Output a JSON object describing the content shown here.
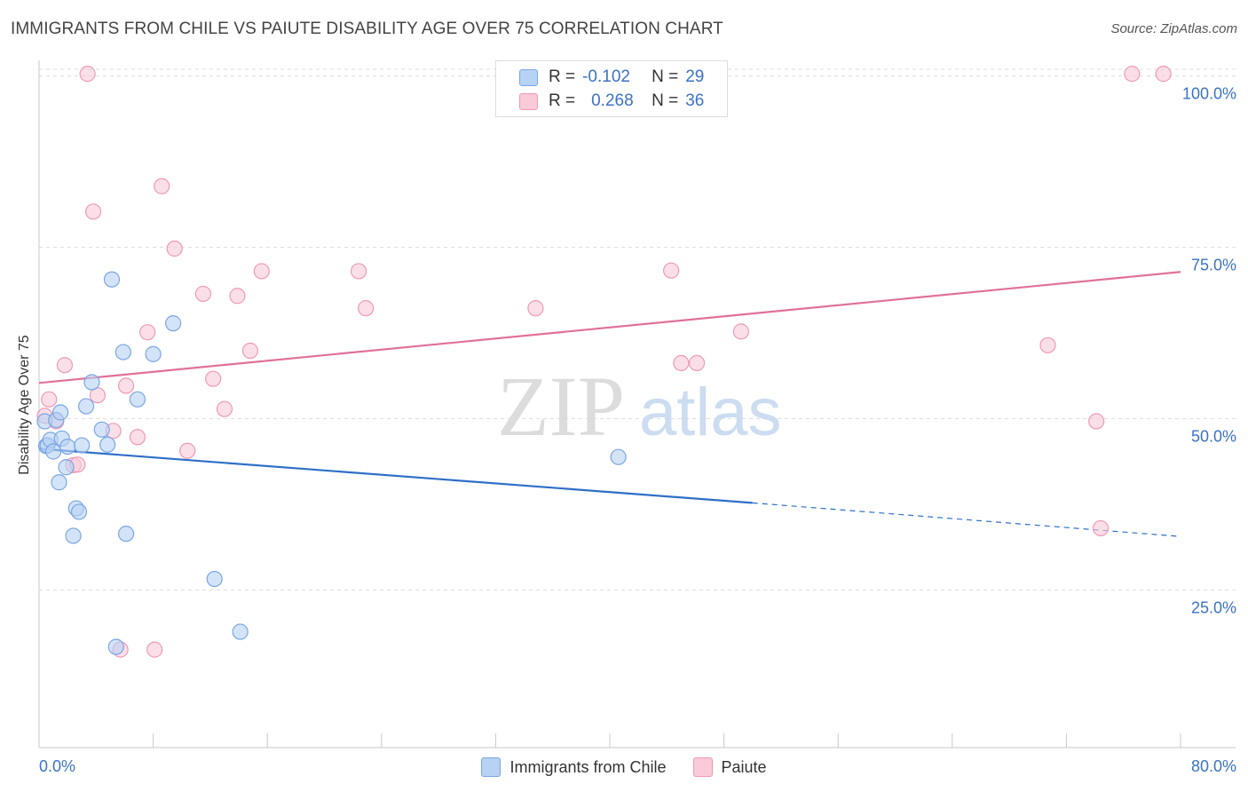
{
  "title": "IMMIGRANTS FROM CHILE VS PAIUTE DISABILITY AGE OVER 75 CORRELATION CHART",
  "source": "Source: ZipAtlas.com",
  "watermark": {
    "zip": "ZIP",
    "atlas": "atlas"
  },
  "colors": {
    "blue_fill": "#b8d2f4",
    "blue_stroke": "#7aa6e3",
    "blue_line": "#2e6fc8",
    "pink_fill": "#f9cad8",
    "pink_stroke": "#ee9ab5",
    "pink_line": "#e0709a",
    "tick_label": "#3a72c4",
    "grid": "#dedede"
  },
  "legend": {
    "rows": [
      {
        "r_label": "R =",
        "r_value": "-0.102",
        "n_label": "N =",
        "n_value": "29"
      },
      {
        "r_label": "R =",
        "r_value": "0.268",
        "n_label": "N =",
        "n_value": "36"
      }
    ]
  },
  "chart_data": {
    "type": "scatter",
    "title": "IMMIGRANTS FROM CHILE VS PAIUTE DISABILITY AGE OVER 75 CORRELATION CHART",
    "xlabel": "",
    "ylabel": "Disability Age Over 75",
    "xlim": [
      0,
      80
    ],
    "ylim": [
      2,
      102
    ],
    "x_tick_labels": [
      "0.0%",
      "80.0%"
    ],
    "y_ticks": [
      25,
      50,
      75,
      100
    ],
    "y_tick_labels": [
      "25.0%",
      "50.0%",
      "75.0%",
      "100.0%"
    ],
    "grid": true,
    "series": [
      {
        "name": "Immigrants from Chile",
        "points": [
          [
            0.4,
            49.6
          ],
          [
            0.5,
            46.0
          ],
          [
            0.6,
            46.1
          ],
          [
            0.8,
            46.9
          ],
          [
            1.0,
            45.2
          ],
          [
            1.2,
            49.8
          ],
          [
            1.4,
            40.7
          ],
          [
            1.5,
            50.9
          ],
          [
            1.6,
            47.1
          ],
          [
            1.9,
            42.9
          ],
          [
            2.0,
            45.9
          ],
          [
            2.4,
            32.9
          ],
          [
            2.6,
            36.9
          ],
          [
            2.8,
            36.4
          ],
          [
            3.0,
            46.1
          ],
          [
            3.3,
            51.8
          ],
          [
            3.7,
            55.3
          ],
          [
            4.4,
            48.4
          ],
          [
            4.8,
            46.2
          ],
          [
            5.1,
            70.3
          ],
          [
            5.4,
            16.7
          ],
          [
            5.9,
            59.7
          ],
          [
            6.1,
            33.2
          ],
          [
            6.9,
            52.8
          ],
          [
            8.0,
            59.4
          ],
          [
            9.4,
            63.9
          ],
          [
            12.3,
            26.6
          ],
          [
            14.1,
            18.9
          ],
          [
            40.6,
            44.4
          ]
        ],
        "trend": {
          "x_start": 0.0,
          "y_start": 45.6,
          "x_solid_end": 50.0,
          "y_solid_end": 37.7,
          "x_dash_end": 80.0,
          "y_dash_end": 32.8
        }
      },
      {
        "name": "Paiute",
        "points": [
          [
            0.4,
            50.4
          ],
          [
            0.7,
            52.8
          ],
          [
            1.2,
            49.6
          ],
          [
            1.8,
            57.8
          ],
          [
            2.4,
            43.2
          ],
          [
            2.7,
            43.3
          ],
          [
            3.4,
            100.3
          ],
          [
            3.8,
            80.2
          ],
          [
            4.1,
            53.4
          ],
          [
            5.2,
            48.2
          ],
          [
            5.7,
            16.3
          ],
          [
            6.1,
            54.8
          ],
          [
            6.9,
            47.3
          ],
          [
            7.6,
            62.6
          ],
          [
            8.1,
            16.3
          ],
          [
            8.6,
            83.9
          ],
          [
            9.5,
            74.8
          ],
          [
            10.4,
            45.3
          ],
          [
            11.5,
            68.2
          ],
          [
            12.2,
            55.8
          ],
          [
            13.0,
            51.4
          ],
          [
            13.9,
            67.9
          ],
          [
            14.8,
            59.9
          ],
          [
            15.6,
            71.5
          ],
          [
            22.4,
            71.5
          ],
          [
            22.9,
            66.1
          ],
          [
            34.8,
            66.1
          ],
          [
            44.3,
            71.6
          ],
          [
            45.0,
            58.1
          ],
          [
            46.1,
            58.1
          ],
          [
            49.2,
            62.7
          ],
          [
            70.7,
            60.7
          ],
          [
            74.1,
            49.6
          ],
          [
            74.4,
            34.0
          ],
          [
            76.6,
            100.3
          ],
          [
            78.8,
            100.3
          ]
        ],
        "trend": {
          "x_start": 0.0,
          "y_start": 55.2,
          "x_solid_end": 80.0,
          "y_solid_end": 71.4
        }
      }
    ]
  }
}
